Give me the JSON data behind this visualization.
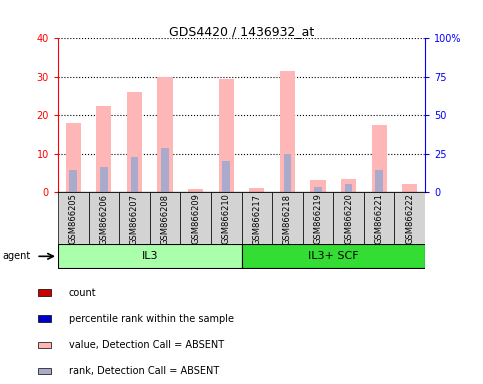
{
  "title": "GDS4420 / 1436932_at",
  "samples": [
    "GSM866205",
    "GSM866206",
    "GSM866207",
    "GSM866208",
    "GSM866209",
    "GSM866210",
    "GSM866217",
    "GSM866218",
    "GSM866219",
    "GSM866220",
    "GSM866221",
    "GSM866222"
  ],
  "groups": [
    {
      "label": "IL3",
      "start": 0,
      "end": 6,
      "color": "#aaffaa"
    },
    {
      "label": "IL3+ SCF",
      "start": 6,
      "end": 12,
      "color": "#33dd33"
    }
  ],
  "value_bars": [
    18.0,
    22.5,
    26.0,
    30.0,
    0.9,
    29.5,
    1.1,
    31.5,
    3.2,
    3.5,
    17.5,
    2.0
  ],
  "rank_bars_pct": [
    14.0,
    16.5,
    23.0,
    28.5,
    0.0,
    20.0,
    0.0,
    25.0,
    3.5,
    5.0,
    14.5,
    0.0
  ],
  "value_absent": [
    true,
    true,
    true,
    true,
    true,
    true,
    true,
    true,
    true,
    true,
    true,
    true
  ],
  "rank_absent": [
    true,
    true,
    true,
    true,
    false,
    true,
    true,
    true,
    true,
    true,
    true,
    false
  ],
  "ylim": [
    0,
    40
  ],
  "y2lim": [
    0,
    100
  ],
  "yticks": [
    0,
    10,
    20,
    30,
    40
  ],
  "y2ticks": [
    0,
    25,
    50,
    75,
    100
  ],
  "ytick_labels": [
    "0",
    "10",
    "20",
    "30",
    "40"
  ],
  "y2tick_labels": [
    "0",
    "25",
    "50",
    "75",
    "100%"
  ],
  "value_bar_width": 0.5,
  "rank_bar_width": 0.25,
  "value_color_absent": "#ffb6b6",
  "rank_color_absent": "#aaaacc",
  "value_color_present": "#cc0000",
  "rank_color_present": "#0000cc",
  "bg_color": "#d3d3d3",
  "legend_items": [
    {
      "color": "#cc0000",
      "label": "count"
    },
    {
      "color": "#0000cc",
      "label": "percentile rank within the sample"
    },
    {
      "color": "#ffb6b6",
      "label": "value, Detection Call = ABSENT"
    },
    {
      "color": "#aaaacc",
      "label": "rank, Detection Call = ABSENT"
    }
  ]
}
